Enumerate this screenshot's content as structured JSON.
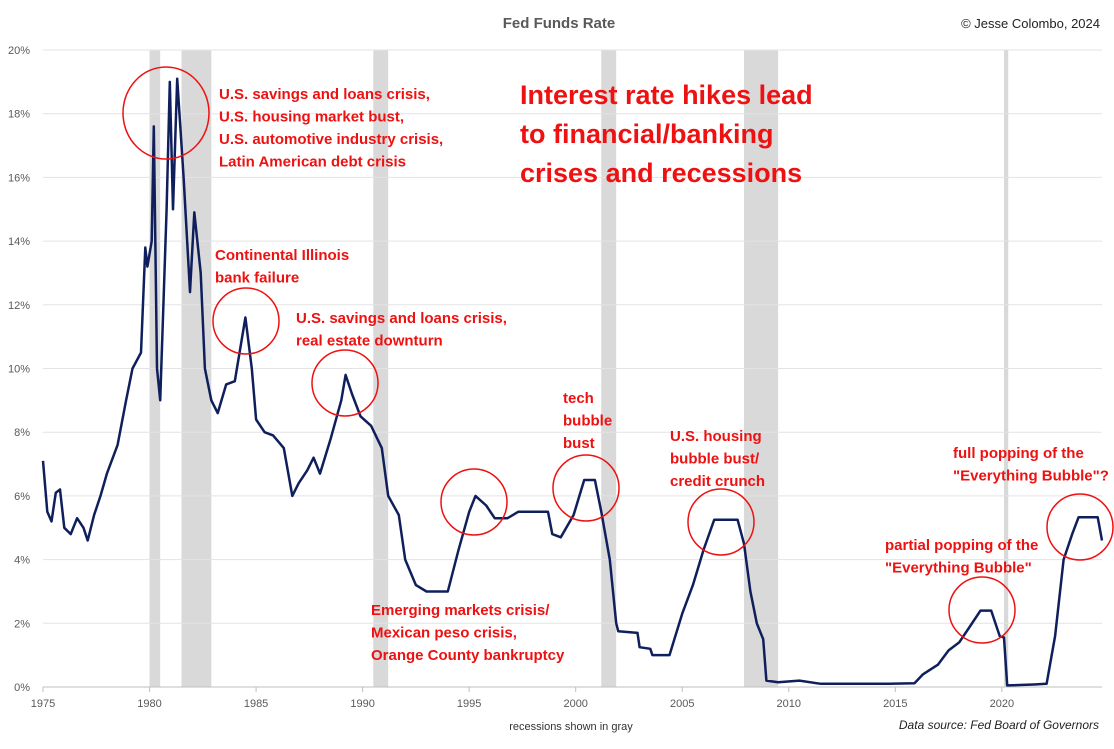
{
  "chart_data": {
    "type": "line",
    "title": "Fed Funds Rate",
    "credit": "© Jesse Colombo, 2024",
    "x_label": "recessions shown in gray",
    "source": "Data source: Fed Board of Governors",
    "color": "#0f1f5c",
    "recession_color": "#d9d9d9",
    "grid": true,
    "xlim": [
      1975,
      2024.7
    ],
    "xticks": [
      1975,
      1980,
      1985,
      1990,
      1995,
      2000,
      2005,
      2010,
      2015,
      2020
    ],
    "ylim": [
      0,
      20
    ],
    "yticks": [
      {
        "value": 0,
        "label": "0%"
      },
      {
        "value": 2,
        "label": "2%"
      },
      {
        "value": 4,
        "label": "4%"
      },
      {
        "value": 6,
        "label": "6%"
      },
      {
        "value": 8,
        "label": "8%"
      },
      {
        "value": 10,
        "label": "10%"
      },
      {
        "value": 12,
        "label": "12%"
      },
      {
        "value": 14,
        "label": "14%"
      },
      {
        "value": 16,
        "label": "16%"
      },
      {
        "value": 18,
        "label": "18%"
      },
      {
        "value": 20,
        "label": "20%"
      }
    ],
    "recessions": [
      [
        1980.0,
        1980.5
      ],
      [
        1981.5,
        1982.9
      ],
      [
        1990.5,
        1991.2
      ],
      [
        2001.2,
        2001.9
      ],
      [
        2007.9,
        2009.5
      ],
      [
        2020.1,
        2020.3
      ]
    ],
    "x": [
      1975.0,
      1975.2,
      1975.4,
      1975.6,
      1975.8,
      1976.0,
      1976.3,
      1976.6,
      1976.9,
      1977.1,
      1977.4,
      1977.7,
      1978.0,
      1978.5,
      1978.9,
      1979.2,
      1979.6,
      1979.8,
      1979.9,
      1980.1,
      1980.2,
      1980.35,
      1980.5,
      1980.8,
      1980.95,
      1981.1,
      1981.3,
      1981.6,
      1981.9,
      1982.1,
      1982.4,
      1982.6,
      1982.9,
      1983.2,
      1983.6,
      1984.0,
      1984.5,
      1984.8,
      1985.0,
      1985.4,
      1985.8,
      1986.3,
      1986.7,
      1987.0,
      1987.4,
      1987.7,
      1988.0,
      1988.5,
      1989.0,
      1989.2,
      1989.5,
      1989.9,
      1990.4,
      1990.9,
      1991.2,
      1991.7,
      1992.0,
      1992.5,
      1993.0,
      1993.5,
      1994.0,
      1994.5,
      1995.0,
      1995.3,
      1995.8,
      1996.2,
      1996.8,
      1997.3,
      1998.0,
      1998.7,
      1998.9,
      1999.3,
      1999.9,
      2000.4,
      2000.9,
      2001.2,
      2001.6,
      2001.9,
      2002.0,
      2002.9,
      2003.0,
      2003.5,
      2003.6,
      2004.4,
      2005.0,
      2005.5,
      2006.0,
      2006.5,
      2007.6,
      2007.9,
      2008.2,
      2008.5,
      2008.8,
      2008.95,
      2009.5,
      2010.5,
      2011.5,
      2013.0,
      2014.5,
      2015.9,
      2016.3,
      2017.0,
      2017.5,
      2018.0,
      2018.5,
      2019.0,
      2019.5,
      2019.9,
      2020.1,
      2020.25,
      2021.5,
      2022.1,
      2022.5,
      2022.9,
      2023.3,
      2023.6,
      2024.5,
      2024.7
    ],
    "values": [
      7.1,
      5.5,
      5.2,
      6.1,
      6.2,
      5.0,
      4.8,
      5.3,
      5.0,
      4.6,
      5.4,
      6.0,
      6.7,
      7.6,
      9.0,
      10.0,
      10.5,
      13.8,
      13.2,
      14.0,
      17.6,
      10.0,
      9.0,
      15.0,
      19.0,
      15.0,
      19.1,
      16.0,
      12.4,
      14.9,
      13.0,
      10.0,
      9.0,
      8.6,
      9.5,
      9.6,
      11.6,
      10.0,
      8.4,
      8.0,
      7.9,
      7.5,
      6.0,
      6.4,
      6.8,
      7.2,
      6.7,
      7.8,
      9.0,
      9.8,
      9.2,
      8.5,
      8.2,
      7.5,
      6.0,
      5.4,
      4.0,
      3.2,
      3.0,
      3.0,
      3.0,
      4.3,
      5.5,
      6.0,
      5.7,
      5.3,
      5.3,
      5.5,
      5.5,
      5.5,
      4.8,
      4.7,
      5.4,
      6.5,
      6.5,
      5.5,
      4.0,
      2.0,
      1.75,
      1.7,
      1.25,
      1.2,
      1.0,
      1.0,
      2.3,
      3.2,
      4.3,
      5.25,
      5.25,
      4.5,
      3.0,
      2.0,
      1.5,
      0.2,
      0.15,
      0.2,
      0.1,
      0.1,
      0.1,
      0.12,
      0.4,
      0.7,
      1.15,
      1.4,
      1.9,
      2.4,
      2.4,
      1.6,
      1.55,
      0.05,
      0.08,
      0.1,
      1.6,
      4.0,
      4.8,
      5.33,
      5.33,
      4.6
    ],
    "headline": [
      "Interest rate hikes lead",
      "to financial/banking",
      "crises and recessions"
    ],
    "annotations": [
      [
        "U.S. savings and loans crisis,",
        "U.S. housing market bust,",
        "U.S. automotive industry crisis,",
        "Latin American debt crisis"
      ],
      [
        "Continental Illinois",
        "bank failure"
      ],
      [
        "U.S. savings and loans crisis,",
        "real estate downturn"
      ],
      [
        "Emerging markets crisis/",
        "Mexican peso crisis,",
        "Orange County bankruptcy"
      ],
      [
        "tech",
        "bubble",
        "bust"
      ],
      [
        "U.S. housing",
        "bubble bust/",
        "credit crunch"
      ],
      [
        "partial popping of the",
        "\"Everything Bubble\""
      ],
      [
        "full popping of the",
        "\"Everything Bubble\"?"
      ]
    ]
  }
}
